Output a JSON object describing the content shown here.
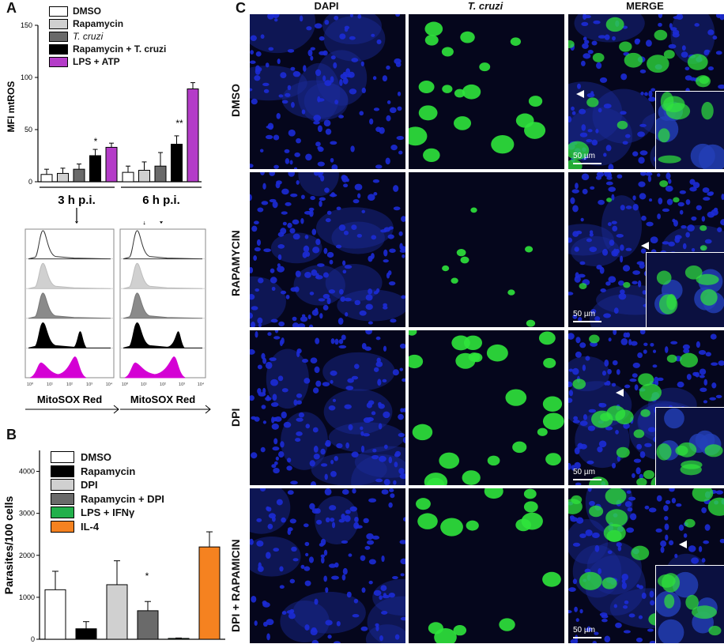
{
  "panels": {
    "a": "A",
    "b": "B",
    "c": "C"
  },
  "panel_a": {
    "ylabel": "MFI mtROS",
    "yticks": [
      "0",
      "50",
      "100",
      "150"
    ],
    "groups": [
      "3 h p.i.",
      "6 h p.i."
    ],
    "legend": [
      "DMSO",
      "Rapamycin",
      "T. cruzi",
      "Rapamycin + T. cruzi",
      "LPS + ATP"
    ],
    "stars_3h": "*",
    "stars_6h": "**",
    "flow_xlabel": "MitoSOX Red",
    "flow_ticks": [
      "10⁰",
      "10¹",
      "10²",
      "10³",
      "10⁴"
    ]
  },
  "panel_b": {
    "ylabel": "Parasites/100 cells",
    "yticks": [
      "0",
      "1000",
      "2000",
      "3000",
      "4000"
    ],
    "legend": [
      "DMSO",
      "Rapamycin",
      "DPI",
      "Rapamycin + DPI",
      "LPS + IFNγ",
      "IL-4"
    ],
    "star": "*"
  },
  "panel_c": {
    "columns": [
      "DAPI",
      "T. cruzi",
      "MERGE"
    ],
    "rows": [
      "DMSO",
      "RAPAMYCIN",
      "DPI",
      "DPI + RAPAMICIN"
    ],
    "scale_label": "50 µm"
  },
  "colors": {
    "dmso": "#ffffff",
    "rapamycin_a": "#d0d0d0",
    "tcruzi": "#6a6a6a",
    "rapa_tcruzi": "#000000",
    "lps_atp": "#b43cc8",
    "rapamycin_b": "#000000",
    "dpi": "#d0d0d0",
    "rapa_dpi": "#6a6a6a",
    "lps_ifn": "#22b04b",
    "il4": "#f58220",
    "magenta_fill": "#d400d4",
    "dapi_blue": "#1c2bd6",
    "gfp_green": "#2fe43c"
  },
  "chart_data": [
    {
      "type": "bar",
      "title": "",
      "xlabel": "",
      "ylabel": "MFI mtROS",
      "ylim": [
        0,
        150
      ],
      "categories": [
        "3 h p.i.",
        "6 h p.i."
      ],
      "series": [
        {
          "name": "DMSO",
          "values": [
            7,
            9
          ],
          "errors": [
            5,
            6
          ]
        },
        {
          "name": "Rapamycin",
          "values": [
            8,
            11
          ],
          "errors": [
            5,
            8
          ]
        },
        {
          "name": "T. cruzi",
          "values": [
            12,
            15
          ],
          "errors": [
            5,
            13
          ]
        },
        {
          "name": "Rapamycin + T. cruzi",
          "values": [
            25,
            36
          ],
          "errors": [
            6,
            8
          ]
        },
        {
          "name": "LPS + ATP",
          "values": [
            33,
            89
          ],
          "errors": [
            4,
            6
          ]
        }
      ],
      "annotations": [
        {
          "group": "3 h p.i.",
          "series": "Rapamycin + T. cruzi",
          "text": "*"
        },
        {
          "group": "6 h p.i.",
          "series": "Rapamycin + T. cruzi",
          "text": "**"
        }
      ]
    },
    {
      "type": "bar",
      "title": "",
      "xlabel": "",
      "ylabel": "Parasites/100 cells",
      "ylim": [
        0,
        4500
      ],
      "categories": [
        "DMSO",
        "Rapamycin",
        "DPI",
        "Rapamycin + DPI",
        "LPS + IFNγ",
        "IL-4"
      ],
      "values": [
        1180,
        250,
        1300,
        680,
        20,
        2200
      ],
      "errors": [
        440,
        170,
        570,
        220,
        10,
        360
      ],
      "annotations": [
        {
          "category": "Rapamycin + DPI",
          "text": "*"
        }
      ]
    }
  ]
}
